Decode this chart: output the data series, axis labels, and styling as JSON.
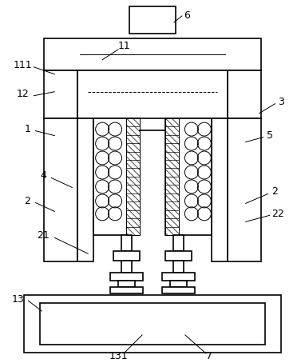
{
  "bg_color": "#ffffff",
  "line_color": "#000000",
  "lw": 1.2,
  "tlw": 0.7,
  "fs": 9.0,
  "fig_w": 3.82,
  "fig_h": 4.54,
  "dpi": 100
}
